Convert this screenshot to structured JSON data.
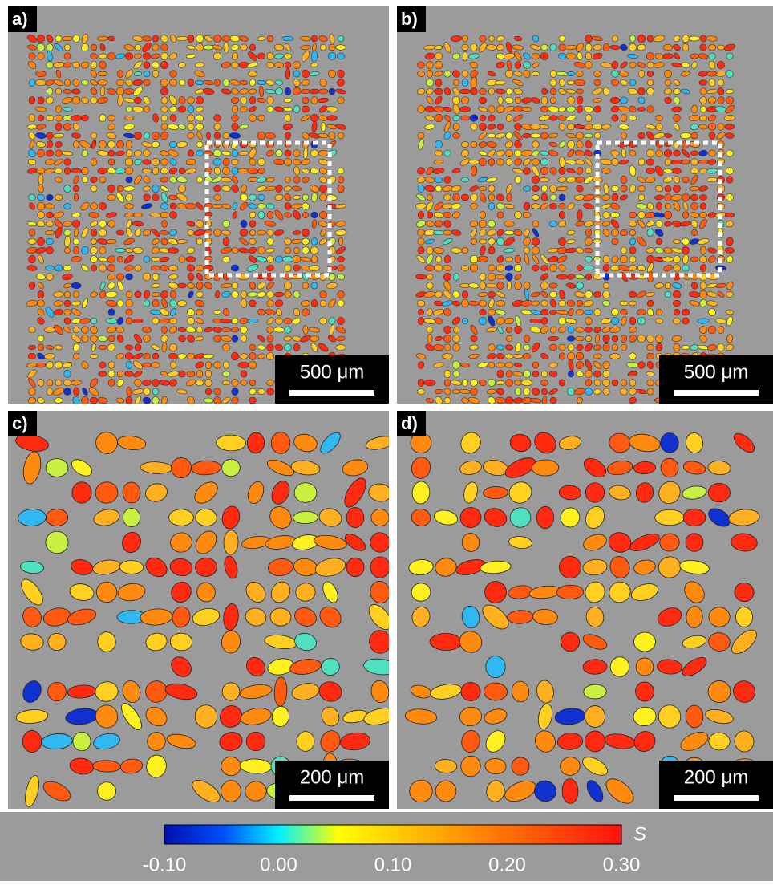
{
  "panels": [
    {
      "label": "a)",
      "scale_bar": "500 μm"
    },
    {
      "label": "b)",
      "scale_bar": "500 μm"
    },
    {
      "label": "c)",
      "scale_bar": "200 μm"
    },
    {
      "label": "d)",
      "scale_bar": "200 μm"
    }
  ],
  "colorbar": {
    "symbol": "S",
    "range": [
      -0.1,
      0.3
    ],
    "ticks": [
      {
        "value": -0.1,
        "label": "-0.10"
      },
      {
        "value": 0,
        "label": "0.00"
      },
      {
        "value": 0.1,
        "label": "0.10"
      },
      {
        "value": 0.2,
        "label": "0.20"
      },
      {
        "value": 0.3,
        "label": "0.30"
      }
    ]
  }
}
